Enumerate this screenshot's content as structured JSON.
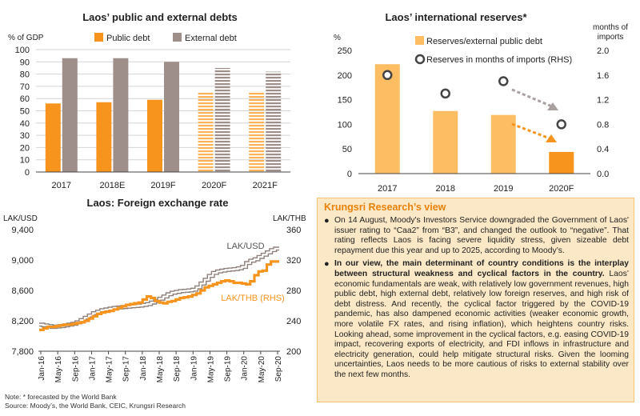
{
  "chart_data": [
    {
      "id": "debt",
      "type": "bar",
      "title": "Laos’ public and external debts",
      "ylabel": "% of GDP",
      "categories": [
        "2017",
        "2018E",
        "2019F",
        "2020F",
        "2021F"
      ],
      "forecast_start_index": 3,
      "series": [
        {
          "name": "Public debt",
          "values": [
            56,
            57,
            59,
            65,
            66
          ],
          "color": "#f7941d"
        },
        {
          "name": "External debt",
          "values": [
            93,
            93,
            90,
            85,
            82
          ],
          "color": "#9e8f8a"
        }
      ],
      "ylim": [
        0,
        100
      ],
      "yticks": [
        0,
        10,
        20,
        30,
        40,
        50,
        60,
        70,
        80,
        90,
        100
      ],
      "legend_position": "top"
    },
    {
      "id": "reserves",
      "type": "bar",
      "title": "Laos’ international reserves*",
      "ylabel": "%",
      "y2label": [
        "months of",
        "imports"
      ],
      "categories": [
        "2017",
        "2018",
        "2019",
        "2020F"
      ],
      "series": [
        {
          "name": "Reserves/external public debt",
          "axis": "left",
          "values": [
            222,
            127,
            119,
            44
          ],
          "color": "#fdbd63",
          "highlight_color": "#f7941d"
        },
        {
          "name": "Reserves in months of imports (RHS)",
          "axis": "right",
          "marker": "circle",
          "values": [
            1.6,
            1.3,
            1.5,
            0.8
          ]
        }
      ],
      "ylim": [
        0,
        250
      ],
      "yticks": [
        0,
        50,
        100,
        150,
        200,
        250
      ],
      "y2lim": [
        0,
        2.0
      ],
      "y2ticks": [
        "0.0",
        "0.4",
        "0.8",
        "1.2",
        "1.6",
        "2.0"
      ],
      "legend_position": "top"
    },
    {
      "id": "fx",
      "type": "line",
      "title": "Laos: Foreign exchange rate",
      "ylabel": "LAK/USD",
      "y2label": "LAK/THB",
      "ylim": [
        7800,
        9400
      ],
      "yticks": [
        "7,800",
        "8,200",
        "8,600",
        "9,000",
        "9,400"
      ],
      "y2lim": [
        200,
        360
      ],
      "y2ticks": [
        "200",
        "240",
        "280",
        "320",
        "360"
      ],
      "xticks": [
        "Jan-16",
        "May-16",
        "Sep-16",
        "Jan-17",
        "May-17",
        "Sep-17",
        "Jan-18",
        "May-18",
        "Sep-18",
        "Jan-19",
        "May-19",
        "Sep-19",
        "Jan-20",
        "May-20",
        "Sep-20"
      ],
      "series": [
        {
          "name": "LAK/USD",
          "axis": "left",
          "color": "#9e8f8a",
          "values": [
            8150,
            8140,
            8130,
            8120,
            8125,
            8130,
            8140,
            8150,
            8160,
            8180,
            8210,
            8240,
            8270,
            8300,
            8320,
            8340,
            8350,
            8360,
            8370,
            8375,
            8380,
            8385,
            8390,
            8395,
            8400,
            8410,
            8420,
            8440,
            8460,
            8490,
            8520,
            8550,
            8570,
            8580,
            8590,
            8595,
            8600,
            8610,
            8640,
            8690,
            8740,
            8790,
            8830,
            8850,
            8860,
            8870,
            8875,
            8880,
            8890,
            8910,
            8960,
            8990,
            9010,
            9040,
            9070,
            9100,
            9130,
            9150
          ]
        },
        {
          "name": "LAK/THB (RHS)",
          "axis": "right",
          "color": "#f7941d",
          "values": [
            228,
            230,
            232,
            232,
            233,
            234,
            235,
            235,
            236,
            237,
            238,
            240,
            243,
            246,
            249,
            251,
            252,
            253,
            255,
            257,
            259,
            261,
            262,
            263,
            264,
            268,
            272,
            270,
            266,
            264,
            263,
            265,
            266,
            268,
            270,
            271,
            272,
            274,
            276,
            280,
            284,
            286,
            288,
            290,
            292,
            293,
            292,
            290,
            290,
            289,
            288,
            292,
            300,
            305,
            306,
            314,
            318,
            318
          ]
        }
      ],
      "annotations": [
        "LAK/USD",
        "LAK/THB (RHS)"
      ]
    }
  ],
  "view": {
    "title": "Krungsri Research’s view",
    "bullet1": "On 14 August, Moody's Investors Service downgraded the Government of Laos' issuer rating to “Caa2” from “B3”, and changed the outlook to “negative”. That rating reflects Laos is facing severe liquidity stress, given sizeable debt repayment due this year and up to 2025, according to Moody’s.",
    "bullet2_bold": "In our view, the main determinant of country conditions is the interplay between structural weakness and cyclical factors in the country.",
    "bullet2_rest": " Laos’ economic fundamentals are weak, with relatively low government revenues, high public debt, high external debt, relatively low foreign reserves, and high risk of debt distress. And recently, the cyclical factor triggered by the COVID-19 pandemic, has also dampened economic activities (weaker economic growth, more volatile FX rates, and rising inflation), which heightens country risks. Looking ahead, some improvement in the cyclical factors, e.g. easing COVID-19 impact, recovering exports of electricity, and FDI inflows in infrastructure and electricity generation, could help mitigate structural risks. Given the looming uncertainties, Laos needs to be more cautious of risks to external stability over the next few months.",
    "bullet_glyph": "●"
  },
  "footnote": {
    "line1": "Note: * forecasted by the World Bank",
    "line2": "Source: Moody’s, the World Bank, CEIC, Krungsri Research"
  }
}
